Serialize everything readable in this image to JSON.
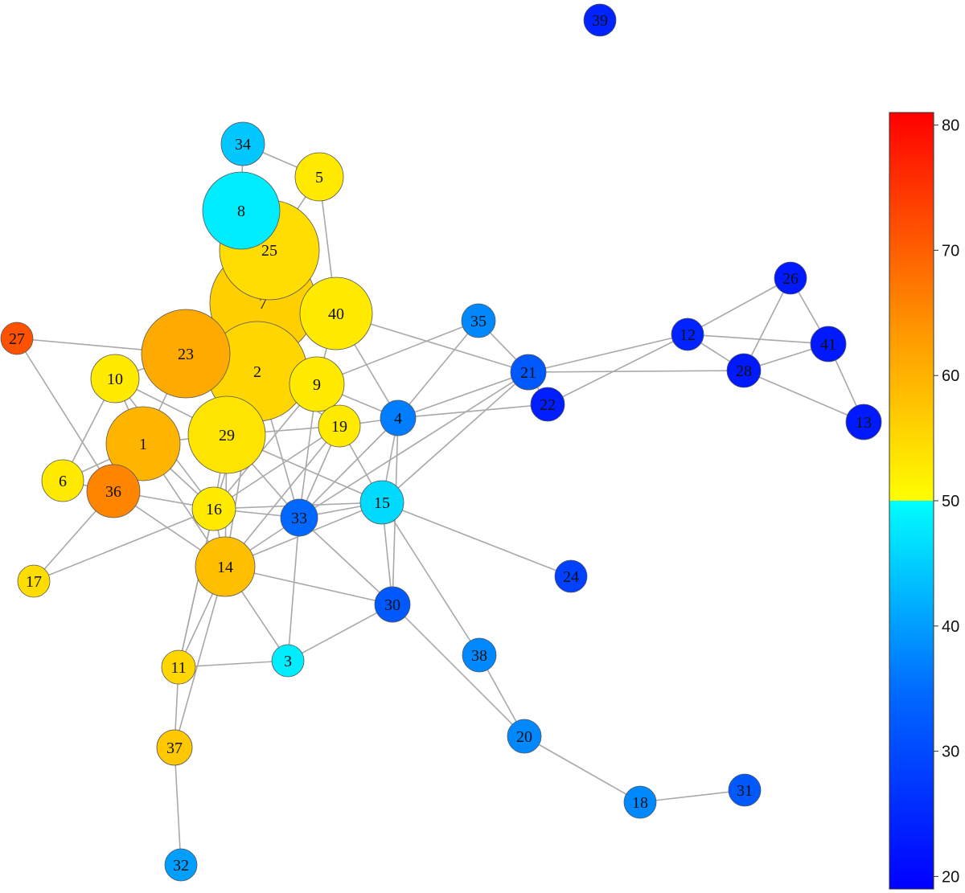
{
  "nodes": [
    {
      "id": "1",
      "value": 60
    },
    {
      "id": "2",
      "value": 56
    },
    {
      "id": "3",
      "value": 48
    },
    {
      "id": "4",
      "value": 37
    },
    {
      "id": "5",
      "value": 53
    },
    {
      "id": "6",
      "value": 53
    },
    {
      "id": "7",
      "value": 57
    },
    {
      "id": "8",
      "value": 48
    },
    {
      "id": "9",
      "value": 53
    },
    {
      "id": "10",
      "value": 53
    },
    {
      "id": "11",
      "value": 56
    },
    {
      "id": "12",
      "value": 26
    },
    {
      "id": "13",
      "value": 24
    },
    {
      "id": "14",
      "value": 59
    },
    {
      "id": "15",
      "value": 46
    },
    {
      "id": "16",
      "value": 53
    },
    {
      "id": "17",
      "value": 55
    },
    {
      "id": "18",
      "value": 38
    },
    {
      "id": "19",
      "value": 53
    },
    {
      "id": "20",
      "value": 38
    },
    {
      "id": "21",
      "value": 33
    },
    {
      "id": "22",
      "value": 25
    },
    {
      "id": "23",
      "value": 61
    },
    {
      "id": "24",
      "value": 30
    },
    {
      "id": "25",
      "value": 55
    },
    {
      "id": "26",
      "value": 24
    },
    {
      "id": "27",
      "value": 71
    },
    {
      "id": "28",
      "value": 24
    },
    {
      "id": "29",
      "value": 54
    },
    {
      "id": "30",
      "value": 33
    },
    {
      "id": "31",
      "value": 33
    },
    {
      "id": "32",
      "value": 40
    },
    {
      "id": "33",
      "value": 35
    },
    {
      "id": "34",
      "value": 44
    },
    {
      "id": "35",
      "value": 38
    },
    {
      "id": "36",
      "value": 65
    },
    {
      "id": "37",
      "value": 58
    },
    {
      "id": "38",
      "value": 38
    },
    {
      "id": "39",
      "value": 26
    },
    {
      "id": "40",
      "value": 53
    },
    {
      "id": "41",
      "value": 24
    }
  ],
  "edges": [
    [
      "34",
      "8"
    ],
    [
      "34",
      "5"
    ],
    [
      "5",
      "25"
    ],
    [
      "5",
      "40"
    ],
    [
      "8",
      "25"
    ],
    [
      "25",
      "7"
    ],
    [
      "7",
      "2"
    ],
    [
      "7",
      "23"
    ],
    [
      "7",
      "40"
    ],
    [
      "27",
      "23"
    ],
    [
      "27",
      "36"
    ],
    [
      "10",
      "23"
    ],
    [
      "10",
      "1"
    ],
    [
      "10",
      "6"
    ],
    [
      "10",
      "29"
    ],
    [
      "10",
      "16"
    ],
    [
      "6",
      "36"
    ],
    [
      "6",
      "1"
    ],
    [
      "17",
      "36"
    ],
    [
      "17",
      "16"
    ],
    [
      "23",
      "1"
    ],
    [
      "23",
      "2"
    ],
    [
      "1",
      "36"
    ],
    [
      "1",
      "29"
    ],
    [
      "1",
      "14"
    ],
    [
      "1",
      "16"
    ],
    [
      "36",
      "16"
    ],
    [
      "36",
      "14"
    ],
    [
      "29",
      "2"
    ],
    [
      "29",
      "16"
    ],
    [
      "29",
      "14"
    ],
    [
      "29",
      "15"
    ],
    [
      "29",
      "33"
    ],
    [
      "29",
      "19"
    ],
    [
      "2",
      "9"
    ],
    [
      "2",
      "19"
    ],
    [
      "2",
      "33"
    ],
    [
      "2",
      "16"
    ],
    [
      "2",
      "14"
    ],
    [
      "9",
      "40"
    ],
    [
      "9",
      "4"
    ],
    [
      "9",
      "35"
    ],
    [
      "9",
      "19"
    ],
    [
      "9",
      "33"
    ],
    [
      "9",
      "16"
    ],
    [
      "40",
      "4"
    ],
    [
      "40",
      "21"
    ],
    [
      "19",
      "4"
    ],
    [
      "19",
      "15"
    ],
    [
      "19",
      "33"
    ],
    [
      "19",
      "14"
    ],
    [
      "19",
      "16"
    ],
    [
      "4",
      "21"
    ],
    [
      "4",
      "22"
    ],
    [
      "4",
      "15"
    ],
    [
      "4",
      "35"
    ],
    [
      "4",
      "33"
    ],
    [
      "4",
      "30"
    ],
    [
      "35",
      "21"
    ],
    [
      "21",
      "22"
    ],
    [
      "21",
      "28"
    ],
    [
      "21",
      "15"
    ],
    [
      "21",
      "33"
    ],
    [
      "22",
      "12"
    ],
    [
      "12",
      "26"
    ],
    [
      "12",
      "28"
    ],
    [
      "12",
      "41"
    ],
    [
      "12",
      "21"
    ],
    [
      "26",
      "28"
    ],
    [
      "26",
      "41"
    ],
    [
      "28",
      "41"
    ],
    [
      "41",
      "13"
    ],
    [
      "28",
      "13"
    ],
    [
      "16",
      "33"
    ],
    [
      "16",
      "14"
    ],
    [
      "16",
      "15"
    ],
    [
      "16",
      "11"
    ],
    [
      "14",
      "33"
    ],
    [
      "14",
      "30"
    ],
    [
      "14",
      "3"
    ],
    [
      "14",
      "11"
    ],
    [
      "14",
      "37"
    ],
    [
      "14",
      "15"
    ],
    [
      "33",
      "3"
    ],
    [
      "33",
      "30"
    ],
    [
      "33",
      "15"
    ],
    [
      "15",
      "30"
    ],
    [
      "15",
      "24"
    ],
    [
      "15",
      "38"
    ],
    [
      "30",
      "3"
    ],
    [
      "30",
      "20"
    ],
    [
      "38",
      "20"
    ],
    [
      "20",
      "18"
    ],
    [
      "18",
      "31"
    ],
    [
      "11",
      "3"
    ],
    [
      "11",
      "37"
    ],
    [
      "37",
      "32"
    ],
    [
      "11",
      "16"
    ]
  ],
  "colorbar": {
    "ticks": [
      80,
      70,
      60,
      50,
      40,
      30,
      20
    ],
    "min": 19,
    "max": 81,
    "colors": {
      "red": "#ff0000",
      "orange": "#ff8c00",
      "yellow": "#ffff00",
      "cyan": "#00ffff",
      "blue_mid": "#0080ff",
      "blue": "#0000ff"
    }
  }
}
